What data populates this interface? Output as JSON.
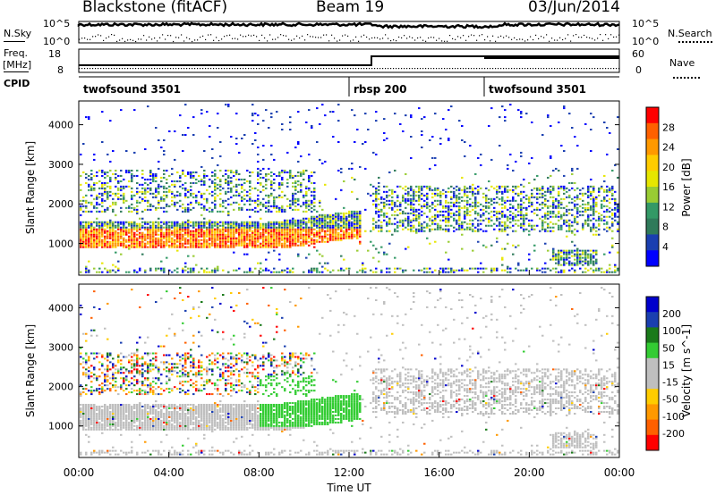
{
  "header": {
    "station": "Blackstone (fitACF)",
    "beam": "Beam 19",
    "date": "03/Jun/2014"
  },
  "side_labels": {
    "nsky": "N.Sky",
    "nsearch": "N.Search",
    "freq_line1": "Freq.",
    "freq_line2": "[MHz]",
    "nave": "Nave",
    "cpid": "CPID"
  },
  "noise_axis": {
    "left_top": "10^5",
    "left_bottom": "10^0",
    "right_top": "10^5",
    "right_bottom": "10^0"
  },
  "freq_axis": {
    "left_ticks": [
      "18",
      "8"
    ],
    "right_ticks": [
      "60",
      "0"
    ]
  },
  "cpid_segments": [
    {
      "label": "twofsound 3501",
      "start_hour": 0.0,
      "end_hour": 12.0
    },
    {
      "label": "rbsp 200",
      "start_hour": 12.0,
      "end_hour": 18.0
    },
    {
      "label": "twofsound 3501",
      "start_hour": 18.0,
      "end_hour": 24.0
    }
  ],
  "chart_data": [
    {
      "type": "heatmap",
      "title": "Power",
      "xlabel": "",
      "ylabel": "Slant Range [km]",
      "xlim": [
        0,
        24
      ],
      "ylim": [
        200,
        4600
      ],
      "y_ticks": [
        1000,
        2000,
        3000,
        4000
      ],
      "colorbar": {
        "label": "Power [dB]",
        "ticks": [
          "28",
          "24",
          "20",
          "16",
          "12",
          "8",
          "4"
        ],
        "colors": [
          "#ff0000",
          "#ff6000",
          "#ff9900",
          "#ffcc00",
          "#e6e600",
          "#99cc33",
          "#339966",
          "#2f7a5a",
          "#1a3fb0",
          "#0000ff"
        ]
      },
      "features": [
        {
          "name": "near-range band",
          "x_range": [
            0,
            12.5
          ],
          "slant_range_km": [
            1000,
            1700
          ],
          "power_db": [
            8,
            28
          ]
        },
        {
          "name": "upper band",
          "x_range": [
            0,
            10.5
          ],
          "slant_range_km": [
            1900,
            2800
          ],
          "power_db": [
            4,
            12
          ]
        },
        {
          "name": "evening band",
          "x_range": [
            13,
            24
          ],
          "slant_range_km": [
            1400,
            2400
          ],
          "power_db": [
            4,
            12
          ]
        },
        {
          "name": "late patch",
          "x_range": [
            21,
            23
          ],
          "slant_range_km": [
            500,
            800
          ],
          "power_db": [
            8,
            20
          ]
        }
      ]
    },
    {
      "type": "heatmap",
      "title": "Velocity",
      "xlabel": "Time UT",
      "ylabel": "Slant Range [km]",
      "xlim": [
        0,
        24
      ],
      "ylim": [
        200,
        4600
      ],
      "x_ticks": [
        "00:00",
        "04:00",
        "08:00",
        "12:00",
        "16:00",
        "20:00",
        "00:00"
      ],
      "y_ticks": [
        1000,
        2000,
        3000,
        4000
      ],
      "colorbar": {
        "label": "Velocity [m s^-1]",
        "ticks": [
          "200",
          "100",
          "50",
          "15",
          "-15",
          "-50",
          "-100",
          "-200"
        ],
        "colors": [
          "#0000cc",
          "#1a3fb0",
          "#1a7a1a",
          "#33cc33",
          "#bfbfbf",
          "#bfbfbf",
          "#ffcc00",
          "#ff9900",
          "#ff6000",
          "#ff0000"
        ]
      }
    }
  ]
}
